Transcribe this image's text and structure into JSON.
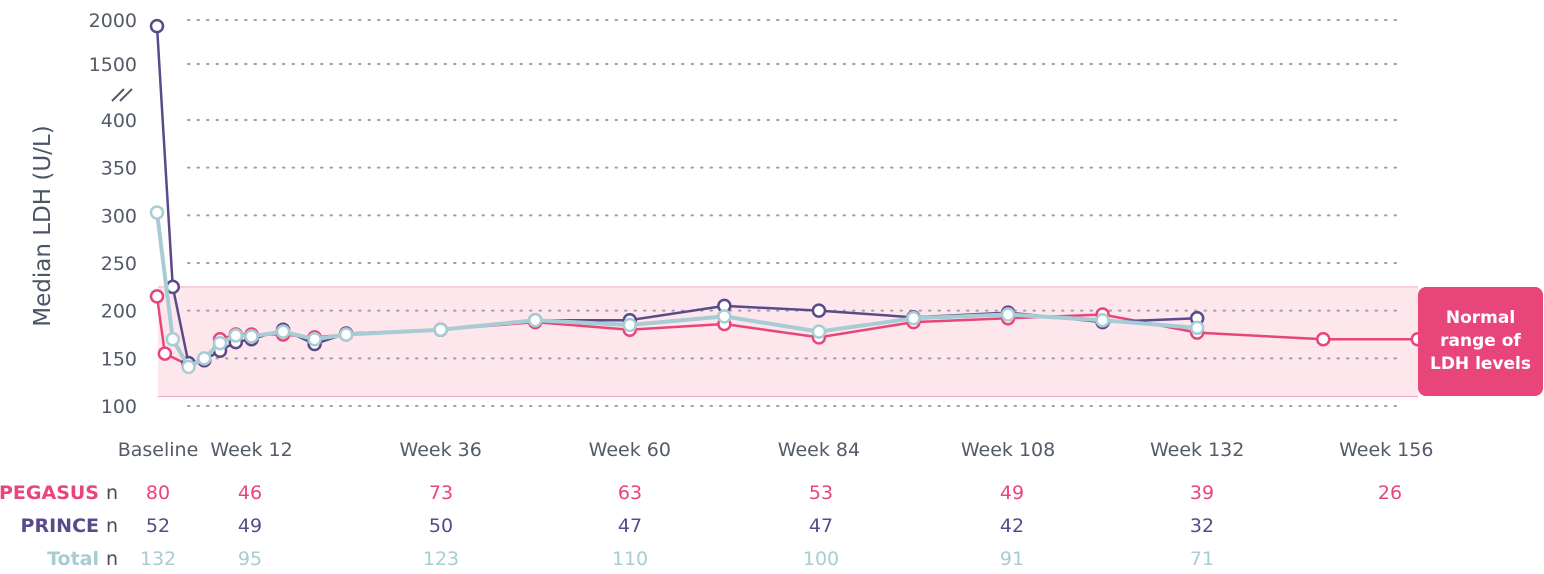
{
  "chart_data": {
    "type": "line",
    "ylabel": "Median LDH (U/L)",
    "xlabel": "",
    "y_ticks": [
      "100",
      "150",
      "200",
      "250",
      "300",
      "350",
      "400",
      "1500",
      "2000"
    ],
    "y_axis_break": "between 400 and 1500",
    "x_ticks": [
      {
        "week": 0,
        "label": "Baseline"
      },
      {
        "week": 12,
        "label": "Week 12"
      },
      {
        "week": 36,
        "label": "Week 36"
      },
      {
        "week": 60,
        "label": "Week 60"
      },
      {
        "week": 84,
        "label": "Week 84"
      },
      {
        "week": 108,
        "label": "Week 108"
      },
      {
        "week": 132,
        "label": "Week 132"
      },
      {
        "week": 156,
        "label": "Week 156"
      }
    ],
    "grid": "horizontal dotted",
    "normal_range": {
      "low": 110,
      "high": 225,
      "label": "Normal range of LDH levels"
    },
    "series": [
      {
        "name": "PEGASUS",
        "color": "#e8457a",
        "points": [
          [
            0,
            215
          ],
          [
            1,
            155
          ],
          [
            4,
            143
          ],
          [
            6,
            148
          ],
          [
            8,
            170
          ],
          [
            10,
            175
          ],
          [
            12,
            175
          ],
          [
            16,
            175
          ],
          [
            20,
            172
          ],
          [
            24,
            175
          ],
          [
            36,
            180
          ],
          [
            48,
            188
          ],
          [
            60,
            180
          ],
          [
            72,
            186
          ],
          [
            84,
            172
          ],
          [
            96,
            188
          ],
          [
            108,
            192
          ],
          [
            120,
            196
          ],
          [
            132,
            177
          ],
          [
            148,
            170
          ],
          [
            160,
            170
          ]
        ]
      },
      {
        "name": "PRINCE",
        "color": "#5a4a8a",
        "points": [
          [
            0,
            1930
          ],
          [
            2,
            225
          ],
          [
            4,
            145
          ],
          [
            6,
            148
          ],
          [
            8,
            158
          ],
          [
            10,
            167
          ],
          [
            12,
            170
          ],
          [
            16,
            180
          ],
          [
            20,
            165
          ],
          [
            24,
            176
          ],
          [
            36,
            180
          ],
          [
            48,
            190
          ],
          [
            60,
            190
          ],
          [
            72,
            205
          ],
          [
            84,
            200
          ],
          [
            96,
            193
          ],
          [
            108,
            198
          ],
          [
            120,
            188
          ],
          [
            132,
            192
          ]
        ]
      },
      {
        "name": "Total",
        "color": "#a8ccd4",
        "points": [
          [
            0,
            303
          ],
          [
            2,
            170
          ],
          [
            4,
            141
          ],
          [
            6,
            150
          ],
          [
            8,
            166
          ],
          [
            10,
            174
          ],
          [
            12,
            173
          ],
          [
            16,
            178
          ],
          [
            20,
            170
          ],
          [
            24,
            175
          ],
          [
            36,
            180
          ],
          [
            48,
            190
          ],
          [
            60,
            185
          ],
          [
            72,
            194
          ],
          [
            84,
            178
          ],
          [
            96,
            192
          ],
          [
            108,
            196
          ],
          [
            120,
            190
          ],
          [
            132,
            182
          ]
        ]
      }
    ],
    "patient_counts": {
      "columns": [
        "Baseline",
        "Week 12",
        "Week 36",
        "Week 60",
        "Week 84",
        "Week 108",
        "Week 132",
        "Week 156"
      ],
      "rows": [
        {
          "name": "PEGASUS",
          "suffix": "n",
          "color": "#e8457a",
          "values": [
            "80",
            "46",
            "73",
            "63",
            "53",
            "49",
            "39",
            "26"
          ]
        },
        {
          "name": "PRINCE",
          "suffix": "n",
          "color": "#5a4a8a",
          "values": [
            "52",
            "49",
            "50",
            "47",
            "47",
            "42",
            "32",
            ""
          ]
        },
        {
          "name": "Total",
          "suffix": "n",
          "color": "#a8ccd4",
          "values": [
            "132",
            "95",
            "123",
            "110",
            "100",
            "91",
            "71",
            ""
          ]
        }
      ]
    }
  },
  "legend_box": {
    "line1": "Normal",
    "line2": "range of",
    "line3": "LDH levels"
  }
}
